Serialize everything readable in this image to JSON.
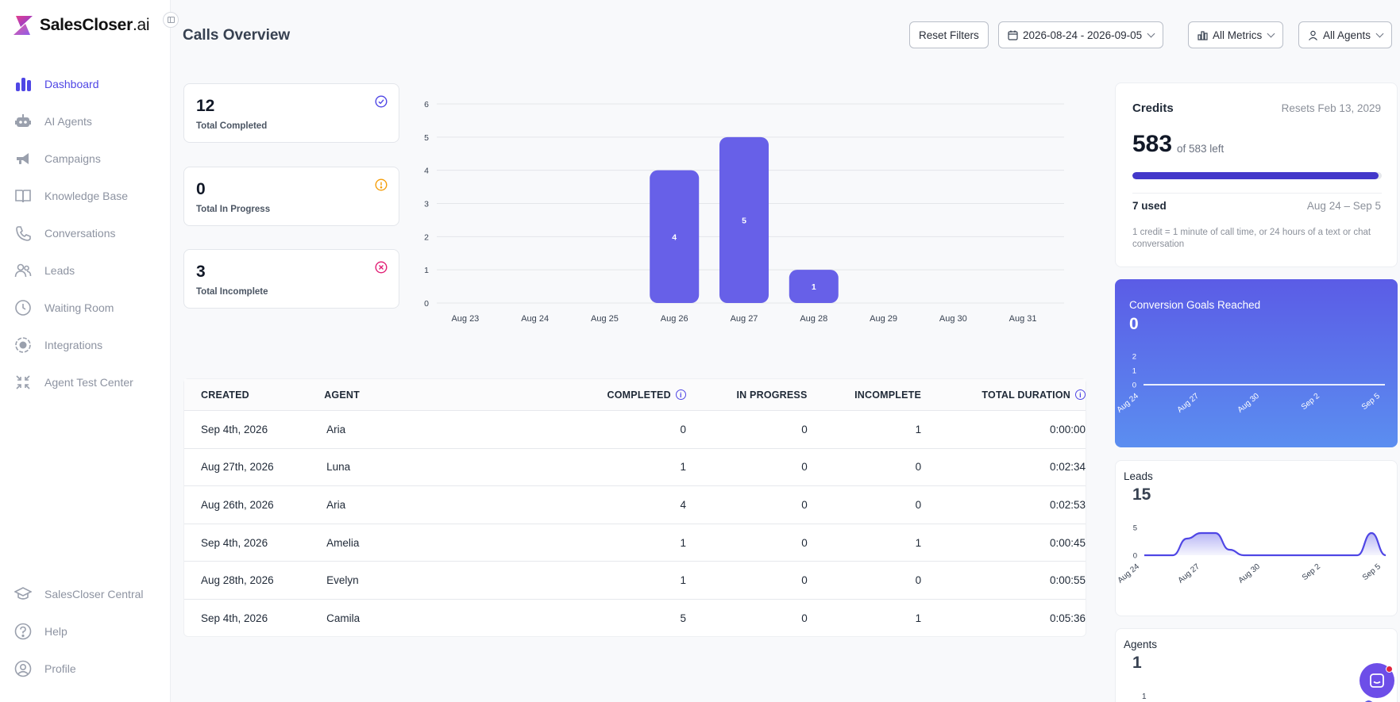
{
  "brand": {
    "name_bold": "SalesCloser",
    "name_light": ".ai"
  },
  "colors": {
    "accent": "#4f46e5",
    "bar": "#6760e8",
    "muted": "#8d93a1"
  },
  "sidebar": {
    "items": [
      {
        "label": "Dashboard",
        "icon": "bar-chart-icon",
        "active": true
      },
      {
        "label": "AI Agents",
        "icon": "robot-icon"
      },
      {
        "label": "Campaigns",
        "icon": "megaphone-icon"
      },
      {
        "label": "Knowledge Base",
        "icon": "book-icon"
      },
      {
        "label": "Conversations",
        "icon": "phone-icon"
      },
      {
        "label": "Leads",
        "icon": "users-icon"
      },
      {
        "label": "Waiting Room",
        "icon": "clock-icon"
      },
      {
        "label": "Integrations",
        "icon": "integrations-icon"
      },
      {
        "label": "Agent Test Center",
        "icon": "compress-icon"
      }
    ],
    "bottom": [
      {
        "label": "SalesCloser Central",
        "icon": "graduation-cap-icon"
      },
      {
        "label": "Help",
        "icon": "help-icon"
      },
      {
        "label": "Profile",
        "icon": "profile-icon"
      }
    ]
  },
  "header": {
    "title": "Calls Overview",
    "reset_label": "Reset Filters",
    "date_range": "2026-08-24 - 2026-09-05",
    "metrics_label": "All Metrics",
    "agents_label": "All Agents"
  },
  "stats": [
    {
      "value": "12",
      "label": "Total Completed",
      "icon": "check-circle-icon",
      "color": "#4f46e5"
    },
    {
      "value": "0",
      "label": "Total In Progress",
      "icon": "alert-circle-icon",
      "color": "#f59e0b"
    },
    {
      "value": "3",
      "label": "Total Incomplete",
      "icon": "x-circle-icon",
      "color": "#e11d74"
    }
  ],
  "chart_data": [
    {
      "type": "bar",
      "categories": [
        "Aug 23",
        "Aug 24",
        "Aug 25",
        "Aug 26",
        "Aug 27",
        "Aug 28",
        "Aug 29",
        "Aug 30",
        "Aug 31"
      ],
      "values": [
        0,
        0,
        0,
        4,
        5,
        1,
        0,
        0,
        0
      ],
      "yticks": [
        "0",
        "1",
        "2",
        "3",
        "4",
        "5",
        "6"
      ],
      "ylim": [
        0,
        6
      ],
      "grid": true
    },
    {
      "type": "line",
      "title": "Conversion Goals Reached",
      "x": [
        "Aug 24",
        "Aug 27",
        "Aug 30",
        "Sep 2",
        "Sep 5"
      ],
      "values": [
        0,
        0,
        0,
        0,
        0
      ],
      "yticks": [
        "0",
        "1",
        "2"
      ],
      "ylim": [
        0,
        2
      ]
    },
    {
      "type": "area",
      "title": "Leads",
      "x": [
        "Aug 24",
        "Aug 27",
        "Aug 30",
        "Sep 2",
        "Sep 5"
      ],
      "points": [
        0,
        0,
        0,
        3,
        4,
        4,
        1,
        0,
        0,
        0,
        0,
        0,
        0,
        0,
        0,
        0,
        4,
        0
      ],
      "yticks": [
        "0",
        "5"
      ],
      "ylim": [
        0,
        5
      ]
    }
  ],
  "table": {
    "headers": [
      "CREATED",
      "AGENT",
      "COMPLETED",
      "IN PROGRESS",
      "INCOMPLETE",
      "TOTAL DURATION"
    ],
    "rows": [
      [
        "Sep 4th, 2026",
        "Aria",
        "0",
        "0",
        "1",
        "0:00:00"
      ],
      [
        "Aug 27th, 2026",
        "Luna",
        "1",
        "0",
        "0",
        "0:02:34"
      ],
      [
        "Aug 26th, 2026",
        "Aria",
        "4",
        "0",
        "0",
        "0:02:53"
      ],
      [
        "Sep 4th, 2026",
        "Amelia",
        "1",
        "0",
        "1",
        "0:00:45"
      ],
      [
        "Aug 28th, 2026",
        "Evelyn",
        "1",
        "0",
        "0",
        "0:00:55"
      ],
      [
        "Sep 4th, 2026",
        "Camila",
        "5",
        "0",
        "1",
        "0:05:36"
      ]
    ]
  },
  "credits": {
    "title": "Credits",
    "resets": "Resets Feb 13, 2029",
    "value": "583",
    "of_label": "of 583 left",
    "fraction_left": 0.988,
    "used": "7 used",
    "range": "Aug 24 – Sep 5",
    "note": "1 credit = 1 minute of call time, or 24 hours of a text or chat conversation"
  },
  "conversion": {
    "title": "Conversion Goals Reached",
    "value": "0"
  },
  "leads": {
    "title": "Leads",
    "value": "15"
  },
  "agents": {
    "title": "Agents",
    "value": "1",
    "ytick": "1"
  }
}
